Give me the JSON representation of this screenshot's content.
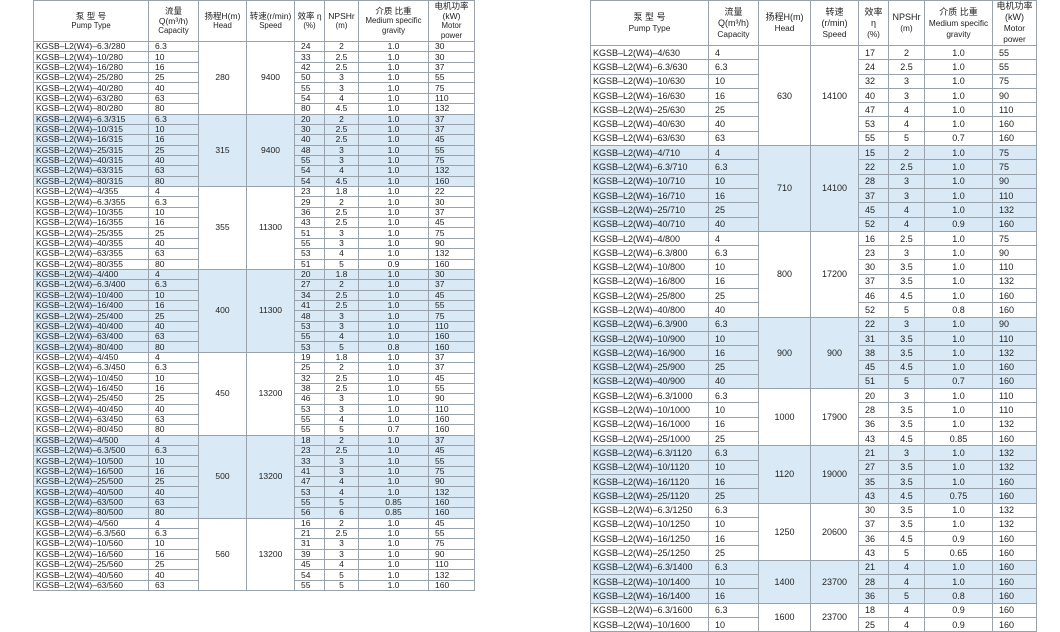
{
  "left": {
    "header": [
      {
        "zh": "泵 型 号",
        "en": "Pump Type"
      },
      {
        "zh": "流量Q(m³/h)",
        "en": "Capacity"
      },
      {
        "zh": "扬程H(m)",
        "en": "Head"
      },
      {
        "zh": "转速(r/min)",
        "en": "Speed"
      },
      {
        "zh": "效率 η",
        "en": "(%)"
      },
      {
        "zh": "NPSHr",
        "en": "(m)"
      },
      {
        "zh": "介质 比重",
        "en": "Medium specific gravity"
      },
      {
        "zh": "电机功率(kW)",
        "en": "Motor power"
      }
    ],
    "groups": [
      {
        "head": "280",
        "speed": "9400",
        "rows": [
          [
            "KGSB–L2(W4)–6.3/280",
            "6.3",
            "24",
            "2",
            "1.0",
            "30"
          ],
          [
            "KGSB–L2(W4)–10/280",
            "10",
            "33",
            "2.5",
            "1.0",
            "30"
          ],
          [
            "KGSB–L2(W4)–16/280",
            "16",
            "42",
            "2.5",
            "1.0",
            "37"
          ],
          [
            "KGSB–L2(W4)–25/280",
            "25",
            "50",
            "3",
            "1.0",
            "55"
          ],
          [
            "KGSB–L2(W4)–40/280",
            "40",
            "55",
            "3",
            "1.0",
            "75"
          ],
          [
            "KGSB–L2(W4)–63/280",
            "63",
            "54",
            "4",
            "1.0",
            "110"
          ],
          [
            "KGSB–L2(W4)–80/280",
            "80",
            "80",
            "4.5",
            "1.0",
            "132"
          ]
        ]
      },
      {
        "head": "315",
        "speed": "9400",
        "rows": [
          [
            "KGSB–L2(W4)–6.3/315",
            "6.3",
            "20",
            "2",
            "1.0",
            "37"
          ],
          [
            "KGSB–L2(W4)–10/315",
            "10",
            "30",
            "2.5",
            "1.0",
            "37"
          ],
          [
            "KGSB–L2(W4)–16/315",
            "16",
            "40",
            "2.5",
            "1.0",
            "45"
          ],
          [
            "KGSB–L2(W4)–25/315",
            "25",
            "48",
            "3",
            "1.0",
            "55"
          ],
          [
            "KGSB–L2(W4)–40/315",
            "40",
            "55",
            "3",
            "1.0",
            "75"
          ],
          [
            "KGSB–L2(W4)–63/315",
            "63",
            "54",
            "4",
            "1.0",
            "132"
          ],
          [
            "KGSB–L2(W4)–80/315",
            "80",
            "54",
            "4.5",
            "1.0",
            "160"
          ]
        ]
      },
      {
        "head": "355",
        "speed": "11300",
        "rows": [
          [
            "KGSB–L2(W4)–4/355",
            "4",
            "23",
            "1.8",
            "1.0",
            "22"
          ],
          [
            "KGSB–L2(W4)–6.3/355",
            "6.3",
            "29",
            "2",
            "1.0",
            "30"
          ],
          [
            "KGSB–L2(W4)–10/355",
            "10",
            "36",
            "2.5",
            "1.0",
            "37"
          ],
          [
            "KGSB–L2(W4)–16/355",
            "16",
            "43",
            "2.5",
            "1.0",
            "45"
          ],
          [
            "KGSB–L2(W4)–25/355",
            "25",
            "51",
            "3",
            "1.0",
            "75"
          ],
          [
            "KGSB–L2(W4)–40/355",
            "40",
            "55",
            "3",
            "1.0",
            "90"
          ],
          [
            "KGSB–L2(W4)–63/355",
            "63",
            "53",
            "4",
            "1.0",
            "132"
          ],
          [
            "KGSB–L2(W4)–80/355",
            "80",
            "51",
            "5",
            "0.9",
            "160"
          ]
        ]
      },
      {
        "head": "400",
        "speed": "11300",
        "rows": [
          [
            "KGSB–L2(W4)–4/400",
            "4",
            "20",
            "1.8",
            "1.0",
            "30"
          ],
          [
            "KGSB–L2(W4)–6.3/400",
            "6.3",
            "27",
            "2",
            "1.0",
            "37"
          ],
          [
            "KGSB–L2(W4)–10/400",
            "10",
            "34",
            "2.5",
            "1.0",
            "45"
          ],
          [
            "KGSB–L2(W4)–16/400",
            "16",
            "41",
            "2.5",
            "1.0",
            "55"
          ],
          [
            "KGSB–L2(W4)–25/400",
            "25",
            "48",
            "3",
            "1.0",
            "75"
          ],
          [
            "KGSB–L2(W4)–40/400",
            "40",
            "53",
            "3",
            "1.0",
            "110"
          ],
          [
            "KGSB–L2(W4)–63/400",
            "63",
            "55",
            "4",
            "1.0",
            "160"
          ],
          [
            "KGSB–L2(W4)–80/400",
            "80",
            "53",
            "5",
            "0.8",
            "160"
          ]
        ]
      },
      {
        "head": "450",
        "speed": "13200",
        "rows": [
          [
            "KGSB–L2(W4)–4/450",
            "4",
            "19",
            "1.8",
            "1.0",
            "37"
          ],
          [
            "KGSB–L2(W4)–6.3/450",
            "6.3",
            "25",
            "2",
            "1.0",
            "37"
          ],
          [
            "KGSB–L2(W4)–10/450",
            "10",
            "32",
            "2.5",
            "1.0",
            "45"
          ],
          [
            "KGSB–L2(W4)–16/450",
            "16",
            "38",
            "2.5",
            "1.0",
            "55"
          ],
          [
            "KGSB–L2(W4)–25/450",
            "25",
            "46",
            "3",
            "1.0",
            "90"
          ],
          [
            "KGSB–L2(W4)–40/450",
            "40",
            "53",
            "3",
            "1.0",
            "110"
          ],
          [
            "KGSB–L2(W4)–63/450",
            "63",
            "55",
            "4",
            "1.0",
            "160"
          ],
          [
            "KGSB–L2(W4)–80/450",
            "80",
            "55",
            "5",
            "0.7",
            "160"
          ]
        ]
      },
      {
        "head": "500",
        "speed": "13200",
        "rows": [
          [
            "KGSB–L2(W4)–4/500",
            "4",
            "18",
            "2",
            "1.0",
            "37"
          ],
          [
            "KGSB–L2(W4)–6.3/500",
            "6.3",
            "23",
            "2.5",
            "1.0",
            "45"
          ],
          [
            "KGSB–L2(W4)–10/500",
            "10",
            "33",
            "3",
            "1.0",
            "55"
          ],
          [
            "KGSB–L2(W4)–16/500",
            "16",
            "41",
            "3",
            "1.0",
            "75"
          ],
          [
            "KGSB–L2(W4)–25/500",
            "25",
            "47",
            "4",
            "1.0",
            "90"
          ],
          [
            "KGSB–L2(W4)–40/500",
            "40",
            "53",
            "4",
            "1.0",
            "132"
          ],
          [
            "KGSB–L2(W4)–63/500",
            "63",
            "55",
            "5",
            "0.85",
            "160"
          ],
          [
            "KGSB–L2(W4)–80/500",
            "80",
            "56",
            "6",
            "0.85",
            "160"
          ]
        ]
      },
      {
        "head": "560",
        "speed": "13200",
        "rows": [
          [
            "KGSB–L2(W4)–4/560",
            "4",
            "16",
            "2",
            "1.0",
            "45"
          ],
          [
            "KGSB–L2(W4)–6.3/560",
            "6.3",
            "21",
            "2.5",
            "1.0",
            "55"
          ],
          [
            "KGSB–L2(W4)–10/560",
            "10",
            "31",
            "3",
            "1.0",
            "75"
          ],
          [
            "KGSB–L2(W4)–16/560",
            "16",
            "39",
            "3",
            "1.0",
            "90"
          ],
          [
            "KGSB–L2(W4)–25/560",
            "25",
            "45",
            "4",
            "1.0",
            "110"
          ],
          [
            "KGSB–L2(W4)–40/560",
            "40",
            "54",
            "5",
            "1.0",
            "132"
          ],
          [
            "KGSB–L2(W4)–63/560",
            "63",
            "55",
            "5",
            "1.0",
            "160"
          ]
        ]
      }
    ]
  },
  "right": {
    "header": [
      {
        "zh": "泵 型 号",
        "en": "Pump Type"
      },
      {
        "zh": "流量Q(m³/h)",
        "en": "Capacity"
      },
      {
        "zh": "扬程H(m)",
        "en": "Head"
      },
      {
        "zh": "转速(r/min)",
        "en": "Speed"
      },
      {
        "zh": "效率 η",
        "en": "(%)"
      },
      {
        "zh": "NPSHr",
        "en": "(m)"
      },
      {
        "zh": "介质 比重",
        "en": "Medium specific gravity"
      },
      {
        "zh": "电机功率(kW)",
        "en": "Motor power"
      }
    ],
    "groups": [
      {
        "head": "630",
        "speed": "14100",
        "rows": [
          [
            "KGSB–L2(W4)–4/630",
            "4",
            "17",
            "2",
            "1.0",
            "55"
          ],
          [
            "KGSB–L2(W4)–6.3/630",
            "6.3",
            "24",
            "2.5",
            "1.0",
            "55"
          ],
          [
            "KGSB–L2(W4)–10/630",
            "10",
            "32",
            "3",
            "1.0",
            "75"
          ],
          [
            "KGSB–L2(W4)–16/630",
            "16",
            "40",
            "3",
            "1.0",
            "90"
          ],
          [
            "KGSB–L2(W4)–25/630",
            "25",
            "47",
            "4",
            "1.0",
            "110"
          ],
          [
            "KGSB–L2(W4)–40/630",
            "40",
            "53",
            "4",
            "1.0",
            "160"
          ],
          [
            "KGSB–L2(W4)–63/630",
            "63",
            "55",
            "5",
            "0.7",
            "160"
          ]
        ]
      },
      {
        "head": "710",
        "speed": "14100",
        "rows": [
          [
            "KGSB–L2(W4)–4/710",
            "4",
            "15",
            "2",
            "1.0",
            "75"
          ],
          [
            "KGSB–L2(W4)–6.3/710",
            "6.3",
            "22",
            "2.5",
            "1.0",
            "75"
          ],
          [
            "KGSB–L2(W4)–10/710",
            "10",
            "28",
            "3",
            "1.0",
            "90"
          ],
          [
            "KGSB–L2(W4)–16/710",
            "16",
            "37",
            "3",
            "1.0",
            "110"
          ],
          [
            "KGSB–L2(W4)–25/710",
            "25",
            "45",
            "4",
            "1.0",
            "132"
          ],
          [
            "KGSB–L2(W4)–40/710",
            "40",
            "52",
            "4",
            "0.9",
            "160"
          ]
        ]
      },
      {
        "head": "800",
        "speed": "17200",
        "rows": [
          [
            "KGSB–L2(W4)–4/800",
            "4",
            "16",
            "2.5",
            "1.0",
            "75"
          ],
          [
            "KGSB–L2(W4)–6.3/800",
            "6.3",
            "23",
            "3",
            "1.0",
            "90"
          ],
          [
            "KGSB–L2(W4)–10/800",
            "10",
            "30",
            "3.5",
            "1.0",
            "110"
          ],
          [
            "KGSB–L2(W4)–16/800",
            "16",
            "37",
            "3.5",
            "1.0",
            "132"
          ],
          [
            "KGSB–L2(W4)–25/800",
            "25",
            "46",
            "4.5",
            "1.0",
            "160"
          ],
          [
            "KGSB–L2(W4)–40/800",
            "40",
            "52",
            "5",
            "0.8",
            "160"
          ]
        ]
      },
      {
        "head": "900",
        "speed": "900",
        "rows": [
          [
            "KGSB–L2(W4)–6.3/900",
            "6.3",
            "22",
            "3",
            "1.0",
            "90"
          ],
          [
            "KGSB–L2(W4)–10/900",
            "10",
            "31",
            "3.5",
            "1.0",
            "110"
          ],
          [
            "KGSB–L2(W4)–16/900",
            "16",
            "38",
            "3.5",
            "1.0",
            "132"
          ],
          [
            "KGSB–L2(W4)–25/900",
            "25",
            "45",
            "4.5",
            "1.0",
            "160"
          ],
          [
            "KGSB–L2(W4)–40/900",
            "40",
            "51",
            "5",
            "0.7",
            "160"
          ]
        ]
      },
      {
        "head": "1000",
        "speed": "17900",
        "rows": [
          [
            "KGSB–L2(W4)–6.3/1000",
            "6.3",
            "20",
            "3",
            "1.0",
            "110"
          ],
          [
            "KGSB–L2(W4)–10/1000",
            "10",
            "28",
            "3.5",
            "1.0",
            "110"
          ],
          [
            "KGSB–L2(W4)–16/1000",
            "16",
            "36",
            "3.5",
            "1.0",
            "132"
          ],
          [
            "KGSB–L2(W4)–25/1000",
            "25",
            "43",
            "4.5",
            "0.85",
            "160"
          ]
        ]
      },
      {
        "head": "1120",
        "speed": "19000",
        "rows": [
          [
            "KGSB–L2(W4)–6.3/1120",
            "6.3",
            "21",
            "3",
            "1.0",
            "132"
          ],
          [
            "KGSB–L2(W4)–10/1120",
            "10",
            "27",
            "3.5",
            "1.0",
            "132"
          ],
          [
            "KGSB–L2(W4)–16/1120",
            "16",
            "35",
            "3.5",
            "1.0",
            "160"
          ],
          [
            "KGSB–L2(W4)–25/1120",
            "25",
            "43",
            "4.5",
            "0.75",
            "160"
          ]
        ]
      },
      {
        "head": "1250",
        "speed": "20600",
        "rows": [
          [
            "KGSB–L2(W4)–6.3/1250",
            "6.3",
            "30",
            "3.5",
            "1.0",
            "132"
          ],
          [
            "KGSB–L2(W4)–10/1250",
            "10",
            "37",
            "3.5",
            "1.0",
            "132"
          ],
          [
            "KGSB–L2(W4)–16/1250",
            "16",
            "36",
            "4.5",
            "0.9",
            "160"
          ],
          [
            "KGSB–L2(W4)–25/1250",
            "25",
            "43",
            "5",
            "0.65",
            "160"
          ]
        ]
      },
      {
        "head": "1400",
        "speed": "23700",
        "rows": [
          [
            "KGSB–L2(W4)–6.3/1400",
            "6.3",
            "21",
            "4",
            "1.0",
            "160"
          ],
          [
            "KGSB–L2(W4)–10/1400",
            "10",
            "28",
            "4",
            "1.0",
            "160"
          ],
          [
            "KGSB–L2(W4)–16/1400",
            "16",
            "36",
            "5",
            "0.8",
            "160"
          ]
        ]
      },
      {
        "head": "1600",
        "speed": "23700",
        "rows": [
          [
            "KGSB–L2(W4)–6.3/1600",
            "6.3",
            "18",
            "4",
            "0.9",
            "160"
          ],
          [
            "KGSB–L2(W4)–10/1600",
            "10",
            "25",
            "4",
            "0.9",
            "160"
          ]
        ]
      }
    ]
  }
}
